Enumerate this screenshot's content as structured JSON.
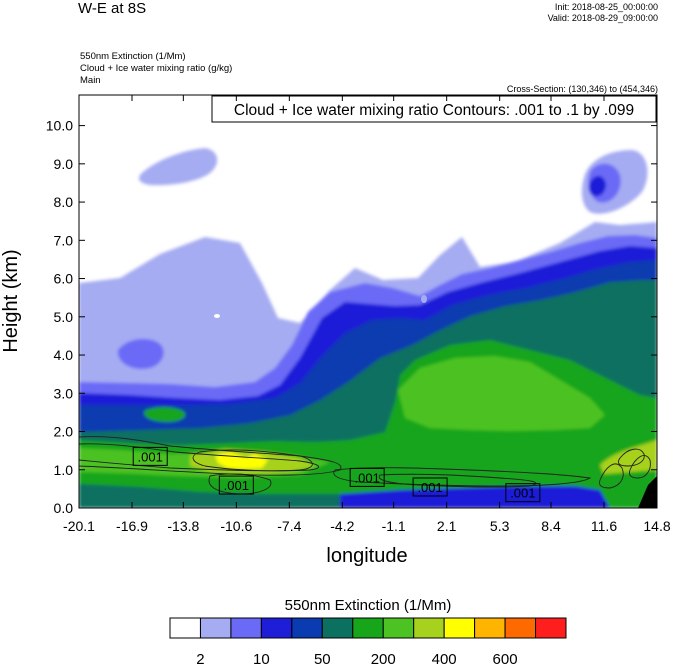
{
  "header": {
    "title": "W-E at 8S",
    "init": "Init: 2018-08-25_00:00:00",
    "valid": "Valid: 2018-08-29_09:00:00",
    "field1": "550nm Extinction   (1/Mm)",
    "field2": "Cloud + Ice water mixing ratio   (g/kg)",
    "field3": "Main",
    "cross_section": "Cross-Section: (130,346) to (454,346)"
  },
  "chart_data": {
    "type": "heatmap",
    "title": "W-E at 8S",
    "xlabel": "longitude",
    "ylabel": "Height (km)",
    "xlim": [
      -20.1,
      14.8
    ],
    "ylim": [
      0.0,
      10.8
    ],
    "x_ticks": [
      "-20.1",
      "-16.9",
      "-13.8",
      "-10.6",
      "-7.4",
      "-4.2",
      "-1.1",
      "2.1",
      "5.3",
      "8.4",
      "11.6",
      "14.8"
    ],
    "y_ticks": [
      "0.0",
      "1.0",
      "2.0",
      "3.0",
      "4.0",
      "5.0",
      "6.0",
      "7.0",
      "8.0",
      "9.0",
      "10.0"
    ],
    "contour_info": "Cloud + Ice water mixing ratio Contours: .001 to .1 by .099",
    "contour_labels": [
      {
        "text": ".001",
        "lon": -15.8,
        "height": 1.35
      },
      {
        "text": ".001",
        "lon": -10.6,
        "height": 0.6
      },
      {
        "text": ".001",
        "lon": -2.7,
        "height": 0.8
      },
      {
        "text": ".001",
        "lon": 1.1,
        "height": 0.55
      },
      {
        "text": ".001",
        "lon": 6.7,
        "height": 0.4
      }
    ],
    "colorbar": {
      "title": "550nm Extinction  (1/Mm)",
      "colors": [
        "#ffffff",
        "#a6acf2",
        "#6a6af6",
        "#1e1ed8",
        "#0a3bb0",
        "#0c7060",
        "#17a51a",
        "#4cc223",
        "#a6d21e",
        "#ffff00",
        "#ffb400",
        "#ff6a00",
        "#ff1e1e"
      ],
      "labels": [
        "2",
        "10",
        "50",
        "200",
        "400",
        "600"
      ]
    }
  }
}
